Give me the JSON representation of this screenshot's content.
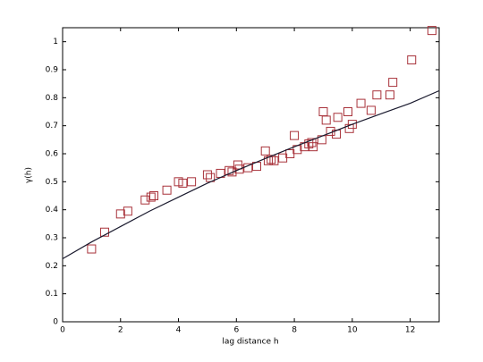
{
  "chart_data": {
    "type": "scatter",
    "xlabel": "lag distance h",
    "ylabel": "γ(h)",
    "xlim": [
      0,
      13
    ],
    "ylim": [
      0,
      1.05
    ],
    "xticks": [
      0,
      2,
      4,
      6,
      8,
      10,
      12
    ],
    "yticks": [
      0,
      0.1,
      0.2,
      0.3,
      0.4,
      0.5,
      0.6,
      0.7,
      0.8,
      0.9,
      1
    ],
    "series": [
      {
        "type": "scatter",
        "marker": "square",
        "color": "#a8323a",
        "x": [
          1.0,
          1.45,
          2.0,
          2.25,
          2.85,
          3.05,
          3.15,
          3.6,
          4.0,
          4.15,
          4.45,
          5.0,
          5.1,
          5.45,
          5.75,
          5.85,
          6.05,
          6.1,
          6.4,
          6.7,
          7.0,
          7.1,
          7.2,
          7.3,
          7.6,
          7.85,
          8.0,
          8.1,
          8.35,
          8.5,
          8.6,
          8.65,
          8.95,
          9.0,
          9.1,
          9.25,
          9.45,
          9.5,
          9.85,
          9.9,
          10.0,
          10.3,
          10.65,
          10.85,
          11.3,
          11.4,
          12.05,
          12.75
        ],
        "values": [
          0.26,
          0.32,
          0.385,
          0.395,
          0.435,
          0.445,
          0.45,
          0.47,
          0.5,
          0.495,
          0.5,
          0.525,
          0.515,
          0.53,
          0.54,
          0.535,
          0.56,
          0.545,
          0.55,
          0.555,
          0.61,
          0.575,
          0.58,
          0.575,
          0.585,
          0.6,
          0.665,
          0.615,
          0.625,
          0.635,
          0.64,
          0.625,
          0.65,
          0.75,
          0.72,
          0.68,
          0.67,
          0.73,
          0.75,
          0.69,
          0.705,
          0.78,
          0.755,
          0.81,
          0.81,
          0.855,
          0.935,
          1.04
        ]
      },
      {
        "type": "line",
        "color": "#1a1a2e",
        "x": [
          0,
          1,
          2,
          3,
          4,
          5,
          6,
          7,
          8,
          9,
          10,
          11,
          12,
          13
        ],
        "values": [
          0.225,
          0.285,
          0.34,
          0.395,
          0.445,
          0.495,
          0.54,
          0.583,
          0.625,
          0.665,
          0.705,
          0.743,
          0.78,
          0.825
        ]
      }
    ]
  }
}
